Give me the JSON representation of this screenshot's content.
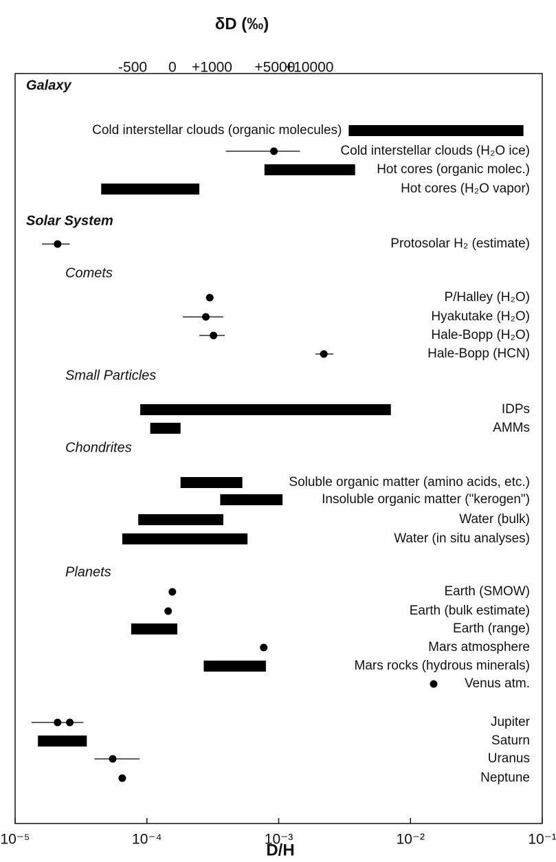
{
  "chart_data": {
    "type": "range",
    "x2label": "δD (‰)",
    "xlabel": "D/H",
    "xscale": "log",
    "xlim": [
      1e-05,
      0.1
    ],
    "xticks": [
      {
        "value": 1e-05,
        "label": "10⁻⁵"
      },
      {
        "value": 0.0001,
        "label": "10⁻⁴"
      },
      {
        "value": 0.001,
        "label": "10⁻³"
      },
      {
        "value": 0.01,
        "label": "10⁻²"
      },
      {
        "value": 0.1,
        "label": "10⁻¹"
      }
    ],
    "x2ticks": [
      {
        "value": 7.8e-05,
        "label": "-500"
      },
      {
        "value": 0.000156,
        "label": "0"
      },
      {
        "value": 0.000312,
        "label": "+1000"
      },
      {
        "value": 0.000935,
        "label": "+5000"
      },
      {
        "value": 0.00171,
        "label": "+10000"
      }
    ],
    "color": "#000000",
    "groups": [
      {
        "name": "Galaxy",
        "level": 1,
        "items": [
          {
            "label": "Cold interstellar clouds (organic molecules)",
            "range": [
              0.0034,
              0.072
            ]
          },
          {
            "label": "Cold interstellar clouds (H₂O ice)",
            "values": [
              0.00092
            ],
            "error": [
              0.000397,
              0.00145
            ]
          },
          {
            "label": "Hot cores (organic molec.)",
            "range": [
              0.00078,
              0.0038
            ]
          },
          {
            "label": "Hot cores (H₂O vapor)",
            "range": [
              4.5e-05,
              0.00025
            ]
          }
        ]
      },
      {
        "name": "Solar System",
        "level": 1,
        "items": [
          {
            "label": "Protosolar H₂ (estimate)",
            "values": [
              2.1e-05
            ],
            "error": [
              1.6e-05,
              2.6e-05
            ]
          }
        ]
      },
      {
        "name": "Comets",
        "level": 2,
        "items": [
          {
            "label": "P/Halley (H₂O)",
            "values": [
              0.0003
            ],
            "error": [
              0.00028,
              0.00032
            ]
          },
          {
            "label": "Hyakutake (H₂O)",
            "values": [
              0.00028
            ],
            "error": [
              0.000187,
              0.00038
            ]
          },
          {
            "label": "Hale-Bopp (H₂O)",
            "values": [
              0.00032
            ],
            "error": [
              0.00025,
              0.00039
            ]
          },
          {
            "label": "Hale-Bopp (HCN)",
            "values": [
              0.0022
            ],
            "error": [
              0.0019,
              0.0026
            ]
          }
        ]
      },
      {
        "name": "Small Particles",
        "level": 2,
        "items": [
          {
            "label": "IDPs",
            "range": [
              8.9e-05,
              0.0071
            ]
          },
          {
            "label": "AMMs",
            "range": [
              0.000106,
              0.00018
            ]
          }
        ]
      },
      {
        "name": "Chondrites",
        "level": 2,
        "items": [
          {
            "label": "Soluble organic matter (amino acids, etc.)",
            "range": [
              0.00018,
              0.00053
            ]
          },
          {
            "label": "Insoluble organic matter (\"kerogen\")",
            "range": [
              0.00036,
              0.00107
            ]
          },
          {
            "label": "Water (bulk)",
            "range": [
              8.6e-05,
              0.00038
            ]
          },
          {
            "label": "Water (in situ analyses)",
            "range": [
              6.5e-05,
              0.00058
            ]
          }
        ]
      },
      {
        "name": "Planets",
        "level": 2,
        "items": [
          {
            "label": "Earth (SMOW)",
            "values": [
              0.000156
            ]
          },
          {
            "label": "Earth (bulk estimate)",
            "values": [
              0.000145
            ]
          },
          {
            "label": "Earth (range)",
            "range": [
              7.6e-05,
              0.00017
            ]
          },
          {
            "label": "Mars atmosphere",
            "values": [
              0.00077
            ]
          },
          {
            "label": "Mars rocks (hydrous minerals)",
            "range": [
              0.00027,
              0.0008
            ]
          },
          {
            "label": "Venus atm.",
            "values": [
              0.015
            ]
          },
          {
            "label": "Jupiter",
            "values": [
              2.1e-05,
              2.6e-05
            ],
            "error": [
              1.33e-05,
              3.3e-05
            ]
          },
          {
            "label": "Saturn",
            "range": [
              1.49e-05,
              3.5e-05
            ]
          },
          {
            "label": "Uranus",
            "values": [
              5.5e-05
            ],
            "error": [
              4e-05,
              8.8e-05
            ]
          },
          {
            "label": "Neptune",
            "values": [
              6.5e-05
            ]
          }
        ]
      }
    ]
  }
}
